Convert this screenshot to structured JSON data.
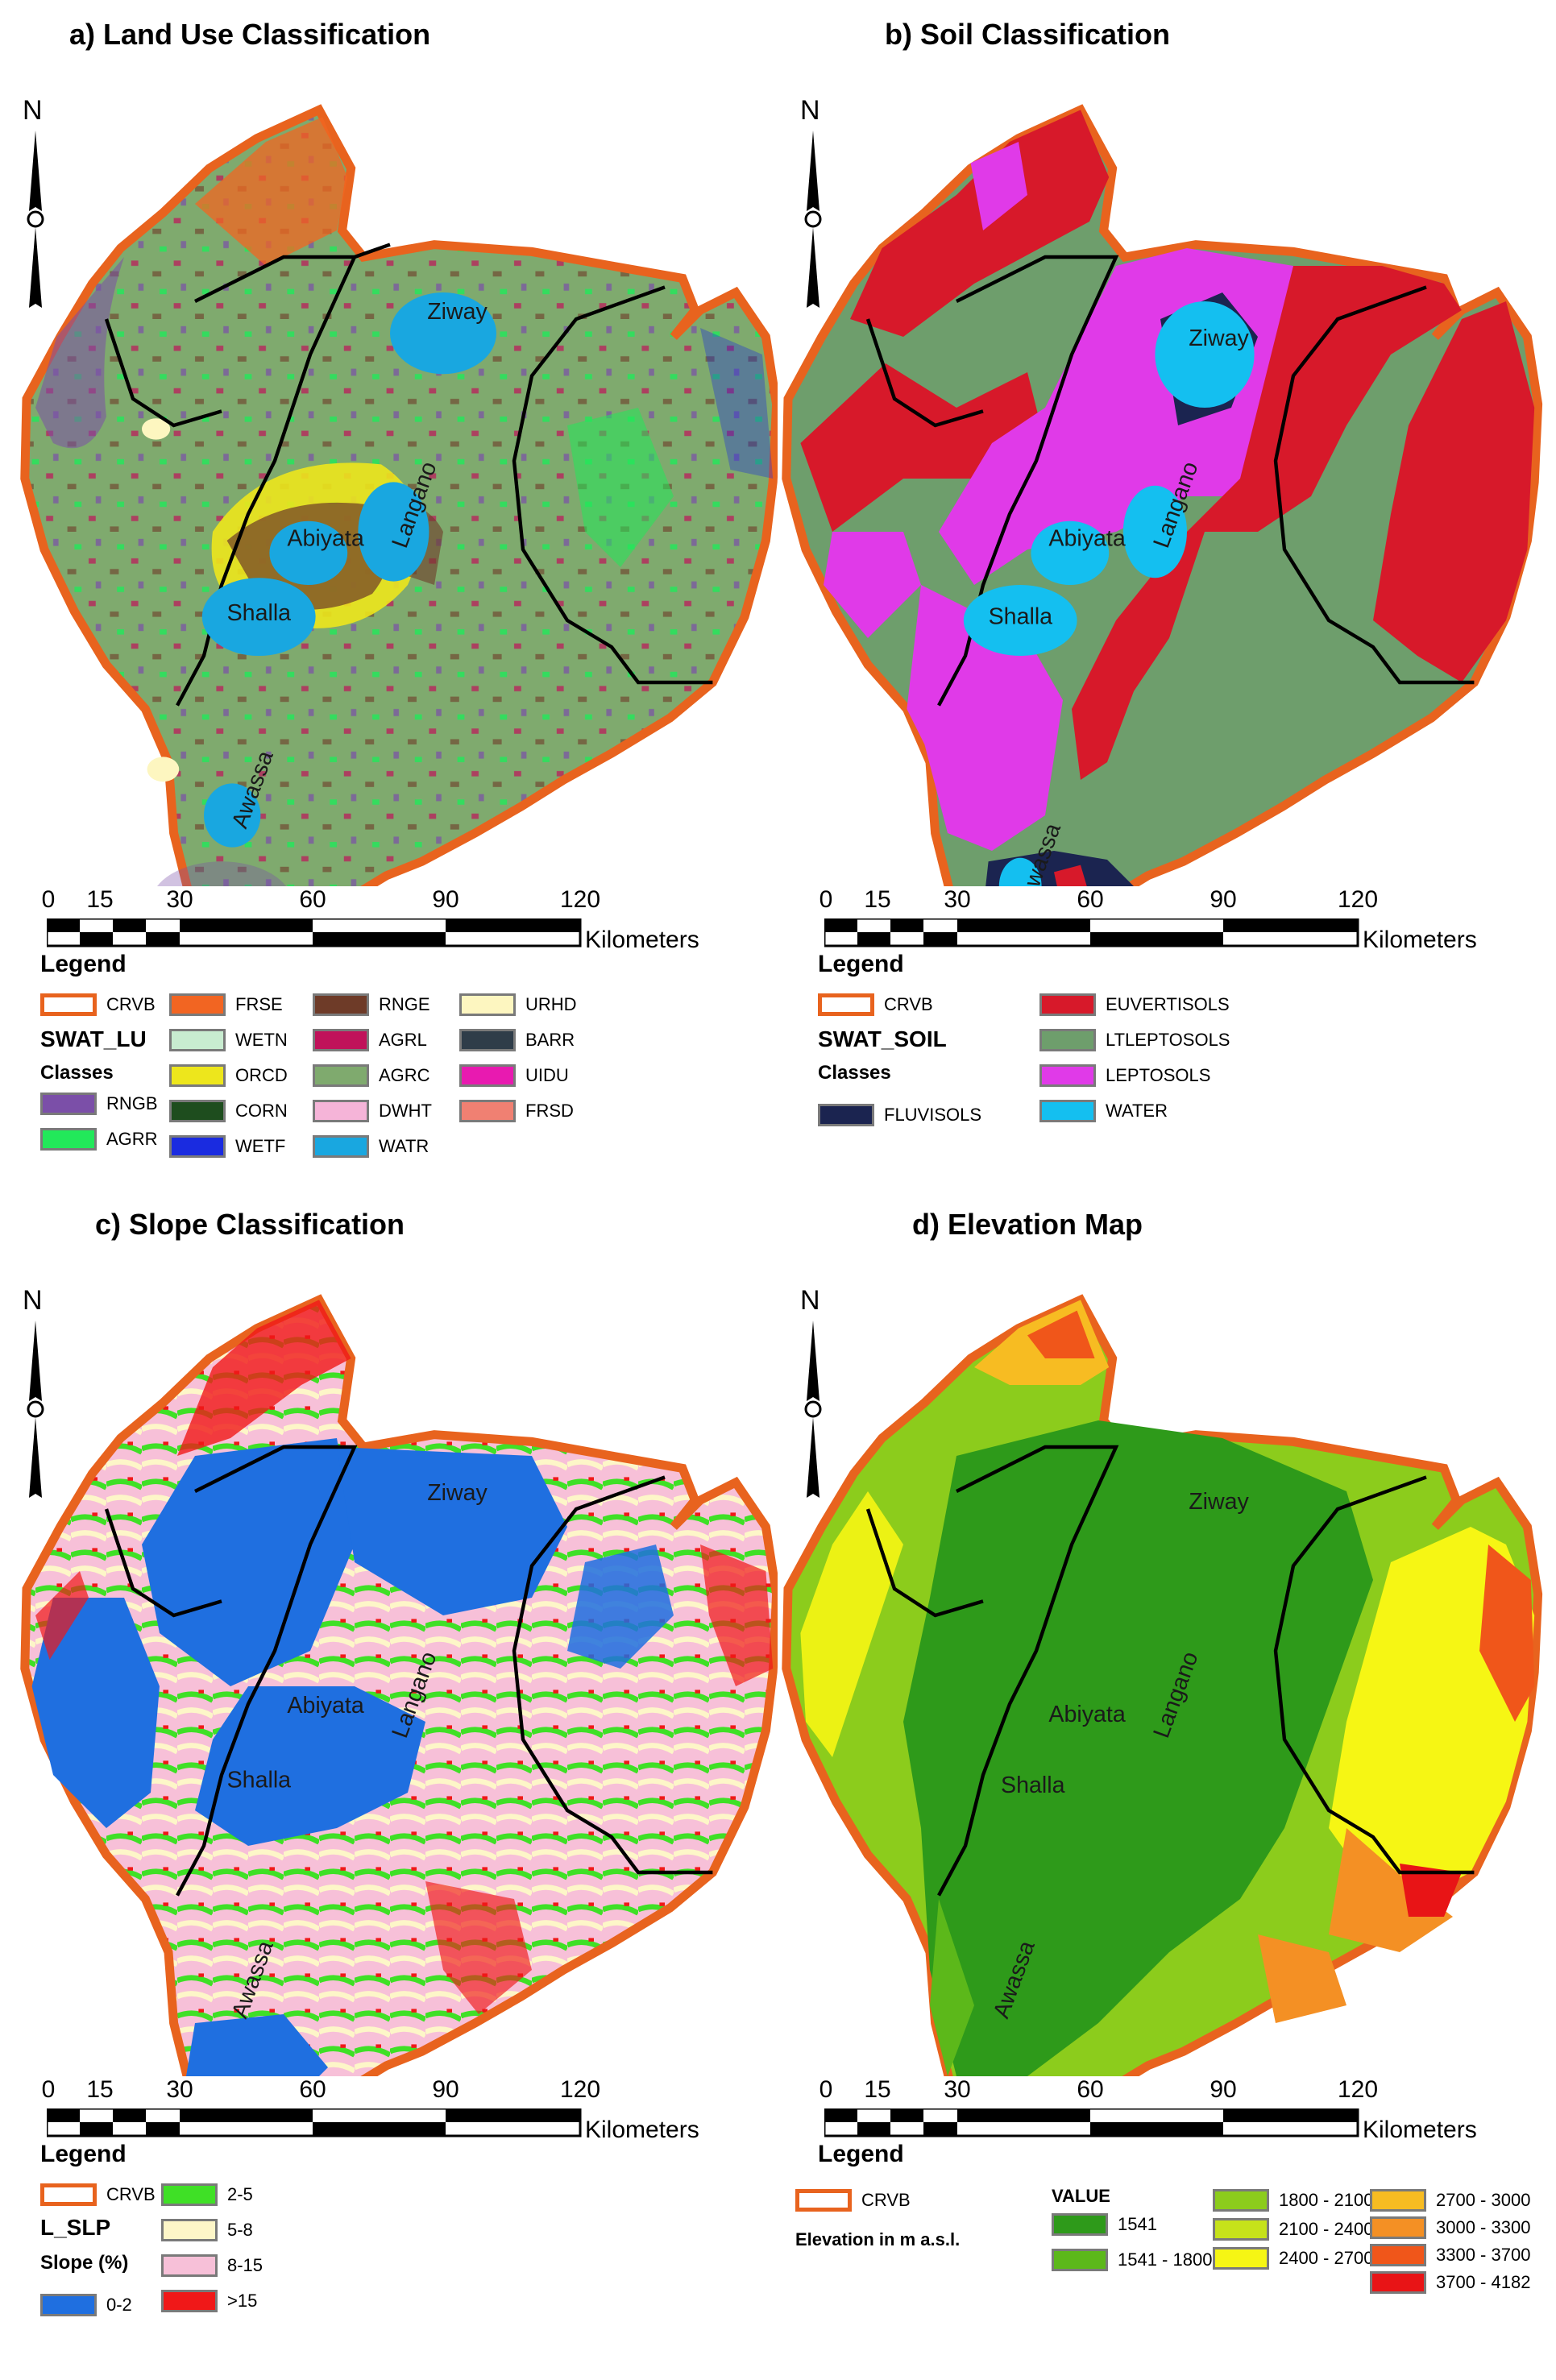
{
  "panels": {
    "a": {
      "title": "a) Land Use Classification",
      "layer": "SWAT_LU",
      "classes_label": "Classes",
      "items": [
        {
          "code": "RNGB",
          "color": "#7b4fa8"
        },
        {
          "code": "AGRR",
          "color": "#22e85a"
        },
        {
          "code": "FRSE",
          "color": "#f26522"
        },
        {
          "code": "WETN",
          "color": "#c8ecd0"
        },
        {
          "code": "ORCD",
          "color": "#ede61c"
        },
        {
          "code": "CORN",
          "color": "#1e4d1e"
        },
        {
          "code": "WETF",
          "color": "#1a2be0"
        },
        {
          "code": "RNGE",
          "color": "#6e3b28"
        },
        {
          "code": "AGRL",
          "color": "#c0125a"
        },
        {
          "code": "AGRC",
          "color": "#7faa6e"
        },
        {
          "code": "DWHT",
          "color": "#f5b4d8"
        },
        {
          "code": "WATR",
          "color": "#19a7e0"
        },
        {
          "code": "URHD",
          "color": "#fdf6c0"
        },
        {
          "code": "BARR",
          "color": "#2f3d49"
        },
        {
          "code": "UIDU",
          "color": "#e81ab0"
        },
        {
          "code": "FRSD",
          "color": "#f08072"
        }
      ]
    },
    "b": {
      "title": "b) Soil Classification",
      "layer": "SWAT_SOIL",
      "classes_label": "Classes",
      "items": [
        {
          "code": "FLUVISOLS",
          "color": "#1b2450"
        },
        {
          "code": "EUVERTISOLS",
          "color": "#d7192a"
        },
        {
          "code": "LTLEPTOSOLS",
          "color": "#6e9e6c"
        },
        {
          "code": "LEPTOSOLS",
          "color": "#e03ae8"
        },
        {
          "code": "WATER",
          "color": "#14bff0"
        }
      ]
    },
    "c": {
      "title": "c) Slope Classification",
      "layer": "L_SLP",
      "classes_label": "Slope (%)",
      "items": [
        {
          "code": "0-2",
          "color": "#1f6fe0"
        },
        {
          "code": "2-5",
          "color": "#3fe026"
        },
        {
          "code": "5-8",
          "color": "#fdf6c8"
        },
        {
          "code": "8-15",
          "color": "#f7c0d8"
        },
        {
          "code": ">15",
          "color": "#f01818"
        }
      ]
    },
    "d": {
      "title": "d) Elevation Map",
      "layer": "Elevation in m a.s.l.",
      "classes_label": "VALUE",
      "items": [
        {
          "code": "1541",
          "color": "#2e9a1a"
        },
        {
          "code": "1541 - 1800",
          "color": "#5cb81a"
        },
        {
          "code": "1800 - 2100",
          "color": "#8ccc1c"
        },
        {
          "code": "2100 - 2400",
          "color": "#c6e21a"
        },
        {
          "code": "2400 - 2700",
          "color": "#f6f614"
        },
        {
          "code": "2700 - 3000",
          "color": "#f7bc22"
        },
        {
          "code": "3000 - 3300",
          "color": "#f49024"
        },
        {
          "code": "3300 - 3700",
          "color": "#f0561a"
        },
        {
          "code": "3700 - 4182",
          "color": "#e81416"
        }
      ]
    }
  },
  "common": {
    "north": "N",
    "legend": "Legend",
    "boundary": "CRVB",
    "scale_ticks": [
      "0",
      "15",
      "30",
      "60",
      "90",
      "120"
    ],
    "scale_unit": "Kilometers",
    "places": {
      "ziway": "Ziway",
      "abiyata": "Abiyata",
      "langano": "Langano",
      "shalla": "Shalla",
      "awassa": "Awassa"
    }
  },
  "colors": {
    "boundary": "#e8631e",
    "lake": "#19a7e0",
    "subbasin": "#000000"
  }
}
